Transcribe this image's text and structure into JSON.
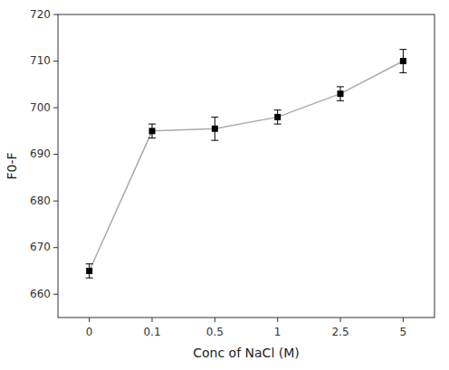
{
  "chart_data": {
    "type": "line",
    "x_label": "Conc of NaCl (M)",
    "y_label": "F0-F",
    "categories": [
      "0",
      "0.1",
      "0.5",
      "1",
      "2.5",
      "5"
    ],
    "values": [
      665,
      695,
      695.5,
      698,
      703,
      710
    ],
    "errors": [
      1.5,
      1.5,
      2.5,
      1.5,
      1.5,
      2.5
    ],
    "color": "#aaaaaa",
    "marker": "square",
    "line_style": "solid",
    "ylim": [
      655,
      720
    ],
    "yticks": [
      660,
      670,
      680,
      690,
      700,
      710,
      720
    ],
    "grid": false
  }
}
